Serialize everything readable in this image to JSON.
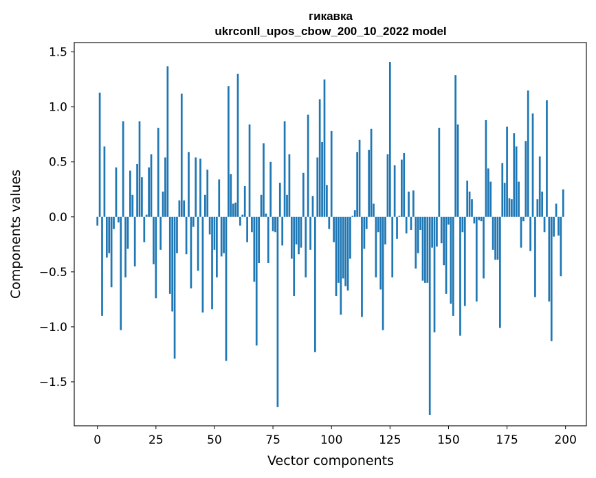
{
  "chart_data": {
    "type": "bar",
    "title": "гикавка",
    "subtitle": "ukrconll_upos_cbow_200_10_2022 model",
    "xlabel": "Vector components",
    "ylabel": "Components values",
    "xlim": [
      -9.9,
      208.9
    ],
    "ylim": [
      -1.9,
      1.585
    ],
    "xticks": [
      0,
      25,
      50,
      75,
      100,
      125,
      150,
      175,
      200
    ],
    "xtick_labels": [
      "0",
      "25",
      "50",
      "75",
      "100",
      "125",
      "150",
      "175",
      "200"
    ],
    "yticks": [
      -1.5,
      -1.0,
      -0.5,
      0.0,
      0.5,
      1.0,
      1.5
    ],
    "ytick_labels": [
      "−1.5",
      "−1.0",
      "−0.5",
      "0.0",
      "0.5",
      "1.0",
      "1.5"
    ],
    "grid": false,
    "bar_color": "#1f77b4",
    "values": [
      -0.08,
      1.13,
      -0.9,
      0.64,
      -0.37,
      -0.33,
      -0.64,
      -0.11,
      0.45,
      -0.05,
      -1.03,
      0.87,
      -0.55,
      -0.29,
      0.42,
      0.2,
      -0.45,
      0.48,
      0.87,
      0.36,
      -0.23,
      0.02,
      0.45,
      0.57,
      -0.43,
      -0.74,
      0.81,
      -0.3,
      0.23,
      0.54,
      1.37,
      -0.7,
      -0.86,
      -1.29,
      -0.33,
      0.15,
      1.12,
      0.15,
      -0.34,
      0.59,
      -0.65,
      -0.09,
      0.54,
      -0.49,
      0.53,
      -0.87,
      0.2,
      0.43,
      -0.16,
      -0.84,
      -0.3,
      -0.55,
      0.34,
      -0.36,
      -0.33,
      -1.31,
      1.19,
      0.39,
      0.12,
      0.13,
      1.3,
      -0.08,
      0.02,
      0.28,
      -0.23,
      0.84,
      -0.14,
      -0.59,
      -1.17,
      -0.42,
      0.2,
      0.67,
      0.03,
      -0.42,
      0.5,
      -0.13,
      -0.14,
      -1.73,
      0.31,
      -0.26,
      0.87,
      0.2,
      0.57,
      -0.38,
      -0.72,
      -0.25,
      -0.34,
      -0.28,
      0.4,
      -0.55,
      0.93,
      -0.3,
      0.19,
      -1.23,
      0.54,
      1.07,
      0.68,
      1.25,
      0.29,
      -0.11,
      0.78,
      -0.23,
      -0.72,
      -0.6,
      -0.89,
      -0.56,
      -0.63,
      -0.67,
      -0.38,
      0.01,
      0.06,
      0.59,
      0.7,
      -0.91,
      -0.29,
      -0.11,
      0.61,
      0.8,
      0.12,
      -0.55,
      -0.14,
      -0.66,
      -1.03,
      -0.25,
      0.57,
      1.41,
      -0.55,
      0.47,
      -0.2,
      0.01,
      0.52,
      0.58,
      -0.15,
      0.23,
      -0.12,
      0.24,
      -0.47,
      -0.33,
      -0.12,
      -0.58,
      -0.6,
      -0.6,
      -1.8,
      -0.28,
      -1.05,
      -0.27,
      0.81,
      -0.24,
      -0.44,
      -0.7,
      -0.07,
      -0.79,
      -0.9,
      1.29,
      0.84,
      -1.08,
      -0.14,
      -0.81,
      0.33,
      0.23,
      0.16,
      -0.06,
      -0.77,
      -0.03,
      -0.04,
      -0.56,
      0.88,
      0.44,
      0.32,
      -0.3,
      -0.39,
      -0.39,
      -1.01,
      0.49,
      0.31,
      0.82,
      0.17,
      0.16,
      0.76,
      0.64,
      0.32,
      -0.28,
      -0.04,
      0.69,
      1.15,
      -0.31,
      0.94,
      -0.73,
      0.16,
      0.55,
      0.23,
      -0.14,
      1.06,
      -0.77,
      -1.13,
      -0.18,
      0.12,
      -0.17,
      -0.54,
      0.25
    ]
  }
}
